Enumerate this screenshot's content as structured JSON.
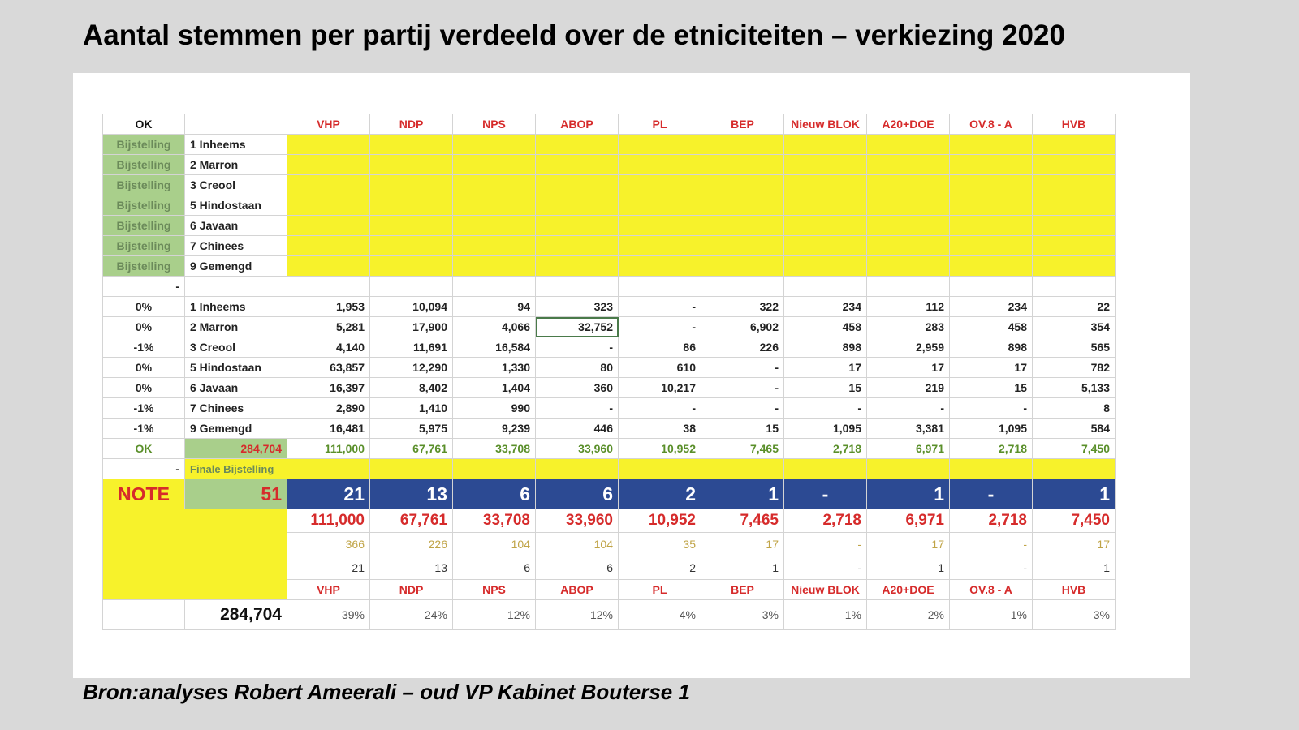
{
  "title": "Aantal stemmen per partij verdeeld over de etniciteiten – verkiezing 2020",
  "source": "Bron:analyses Robert Ameerali – oud VP Kabinet Bouterse 1",
  "table": {
    "corner": "OK",
    "parties": [
      "VHP",
      "NDP",
      "NPS",
      "ABOP",
      "PL",
      "BEP",
      "Nieuw BLOK",
      "A20+DOE",
      "OV.8 - A",
      "HVB"
    ],
    "adjust_label": "Bijstelling",
    "ethnicities": [
      "1 Inheems",
      "2 Marron",
      "3 Creool",
      "5 Hindostaan",
      "6 Javaan",
      "7 Chinees",
      "9 Gemengd"
    ],
    "spacer_mark": "-",
    "rows": [
      {
        "pct": "0%",
        "label": "1 Inheems",
        "values": [
          "1,953",
          "10,094",
          "94",
          "323",
          "-",
          "322",
          "234",
          "112",
          "234",
          "22"
        ]
      },
      {
        "pct": "0%",
        "label": "2 Marron",
        "values": [
          "5,281",
          "17,900",
          "4,066",
          "32,752",
          "-",
          "6,902",
          "458",
          "283",
          "458",
          "354"
        ]
      },
      {
        "pct": "-1%",
        "label": "3 Creool",
        "values": [
          "4,140",
          "11,691",
          "16,584",
          "-",
          "86",
          "226",
          "898",
          "2,959",
          "898",
          "565"
        ]
      },
      {
        "pct": "0%",
        "label": "5 Hindostaan",
        "values": [
          "63,857",
          "12,290",
          "1,330",
          "80",
          "610",
          "-",
          "17",
          "17",
          "17",
          "782"
        ]
      },
      {
        "pct": "0%",
        "label": "6 Javaan",
        "values": [
          "16,397",
          "8,402",
          "1,404",
          "360",
          "10,217",
          "-",
          "15",
          "219",
          "15",
          "5,133"
        ]
      },
      {
        "pct": "-1%",
        "label": "7 Chinees",
        "values": [
          "2,890",
          "1,410",
          "990",
          "-",
          "-",
          "-",
          "-",
          "-",
          "-",
          "8"
        ]
      },
      {
        "pct": "-1%",
        "label": "9 Gemengd",
        "values": [
          "16,481",
          "5,975",
          "9,239",
          "446",
          "38",
          "15",
          "1,095",
          "3,381",
          "1,095",
          "584"
        ]
      }
    ],
    "totals_row": {
      "mark": "OK",
      "grand": "284,704",
      "values": [
        "111,000",
        "67,761",
        "33,708",
        "33,960",
        "10,952",
        "7,465",
        "2,718",
        "6,971",
        "2,718",
        "7,450"
      ]
    },
    "finale": {
      "mark": "-",
      "label": "Finale Bijstelling"
    },
    "note_row": {
      "label": "NOTE",
      "total_seats": "51",
      "seats": [
        "21",
        "13",
        "6",
        "6",
        "2",
        "1",
        "-",
        "1",
        "-",
        "1"
      ]
    },
    "votes_row": [
      "111,000",
      "67,761",
      "33,708",
      "33,960",
      "10,952",
      "7,465",
      "2,718",
      "6,971",
      "2,718",
      "7,450"
    ],
    "quota_row": [
      "366",
      "226",
      "104",
      "104",
      "35",
      "17",
      "-",
      "17",
      "-",
      "17"
    ],
    "seat_row": [
      "21",
      "13",
      "6",
      "6",
      "2",
      "1",
      "-",
      "1",
      "-",
      "1"
    ],
    "grand_total": "284,704",
    "share_row": [
      "39%",
      "24%",
      "12%",
      "12%",
      "4%",
      "3%",
      "1%",
      "2%",
      "1%",
      "3%"
    ]
  }
}
